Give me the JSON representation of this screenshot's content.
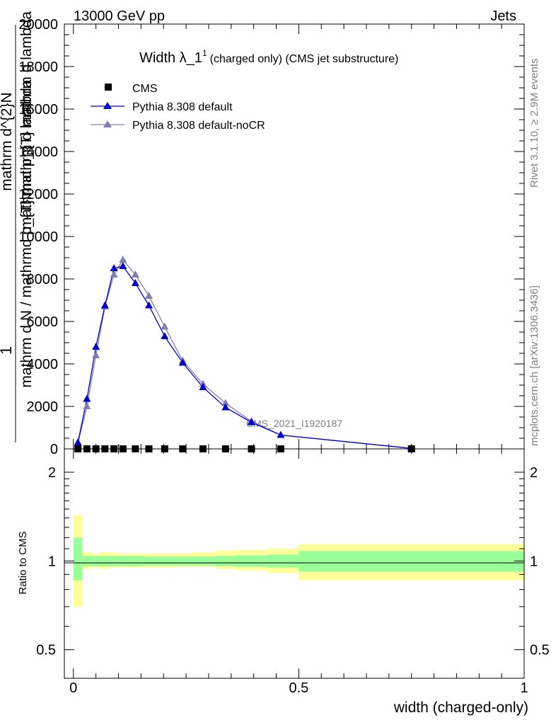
{
  "header": {
    "left": "13000 GeV pp",
    "right": "Jets"
  },
  "side": {
    "rivet": "Rivet 3.1.10, ≥ 2.9M events",
    "mcplots": "mcplots.cern.ch [arXiv:1306.3436]"
  },
  "watermark": "CMS_2021_I1920187",
  "colors": {
    "cms": "#000000",
    "pythia_default": "#0000cc",
    "pythia_nocr": "#8080b0",
    "band_inner": "#99ff99",
    "band_outer": "#ffff99"
  },
  "chart_data": [
    {
      "type": "line",
      "title": "Width λ_1",
      "title_sup": "1",
      "title_extra": "(charged only) (CMS jet substructure)",
      "ylabel": {
        "numerator": "1",
        "denominator": "mathrm d N / mathrmd p_{T} mathrm d lambda",
        "frac_num": "mathrm d^{2}N",
        "frac_den": "mathrmd p_{T} mathrm d lambda"
      },
      "xlim": [
        -0.02,
        1.0
      ],
      "ylim": [
        0,
        20000
      ],
      "yticks": [
        0,
        2000,
        4000,
        6000,
        8000,
        10000,
        12000,
        14000,
        16000,
        18000,
        20000
      ],
      "ytick_labels": [
        "0",
        "2000",
        "4000",
        "6000",
        "8000",
        "10000",
        "12000",
        "14000",
        "16000",
        "18000",
        "20000"
      ],
      "legend_position": "top-left",
      "series": [
        {
          "name": "CMS",
          "marker": "square",
          "x": [
            0.01,
            0.03,
            0.05,
            0.07,
            0.09,
            0.11,
            0.1375,
            0.1675,
            0.2025,
            0.2425,
            0.2875,
            0.3375,
            0.395,
            0.46,
            0.75
          ],
          "y": [
            0,
            0,
            0,
            0,
            0,
            0,
            0,
            0,
            0,
            0,
            0,
            0,
            0,
            0,
            0
          ]
        },
        {
          "name": "Pythia 8.308 default",
          "marker": "triangle",
          "x": [
            0.01,
            0.03,
            0.05,
            0.07,
            0.09,
            0.11,
            0.1375,
            0.1675,
            0.2025,
            0.2425,
            0.2875,
            0.3375,
            0.395,
            0.46,
            0.75
          ],
          "y": [
            300,
            2350,
            4800,
            6750,
            8500,
            8600,
            7800,
            6750,
            5300,
            4050,
            2900,
            1950,
            1250,
            650,
            20
          ]
        },
        {
          "name": "Pythia 8.308 default-noCR",
          "marker": "triangle",
          "x": [
            0.01,
            0.03,
            0.05,
            0.07,
            0.09,
            0.11,
            0.1375,
            0.1675,
            0.2025,
            0.2425,
            0.2875,
            0.3375,
            0.395,
            0.46,
            0.75
          ],
          "y": [
            250,
            2000,
            4400,
            6700,
            8200,
            8900,
            8200,
            7200,
            5750,
            4150,
            3050,
            2150,
            1300,
            650,
            30
          ]
        }
      ]
    },
    {
      "type": "area",
      "ylabel": "Ratio to CMS",
      "xlabel": "width (charged-only)",
      "xlim": [
        -0.02,
        1.0
      ],
      "ylim": [
        0.4,
        2.4
      ],
      "yticks": [
        0.5,
        1,
        2
      ],
      "ytick_labels": [
        "0.5",
        "1",
        "2"
      ],
      "xticks": [
        0,
        0.5,
        1
      ],
      "xtick_labels": [
        "0",
        "0.5",
        "1"
      ],
      "reference_line": 1,
      "bins": [
        0.0,
        0.02,
        0.04,
        0.06,
        0.08,
        0.1,
        0.12,
        0.155,
        0.18,
        0.225,
        0.26,
        0.315,
        0.36,
        0.43,
        0.5,
        1.0
      ],
      "inner_band": {
        "lower": [
          0.86,
          0.96,
          0.96,
          0.96,
          0.96,
          0.96,
          0.96,
          0.965,
          0.965,
          0.965,
          0.965,
          0.96,
          0.955,
          0.95,
          0.92
        ],
        "upper": [
          1.2,
          1.04,
          1.04,
          1.04,
          1.04,
          1.04,
          1.04,
          1.035,
          1.035,
          1.035,
          1.035,
          1.04,
          1.045,
          1.05,
          1.08
        ]
      },
      "outer_band": {
        "lower": [
          0.7,
          0.94,
          0.95,
          0.94,
          0.95,
          0.95,
          0.95,
          0.95,
          0.95,
          0.955,
          0.955,
          0.94,
          0.93,
          0.91,
          0.86
        ],
        "upper": [
          1.43,
          1.07,
          1.06,
          1.07,
          1.07,
          1.06,
          1.06,
          1.06,
          1.06,
          1.06,
          1.07,
          1.085,
          1.09,
          1.1,
          1.14
        ]
      }
    }
  ]
}
